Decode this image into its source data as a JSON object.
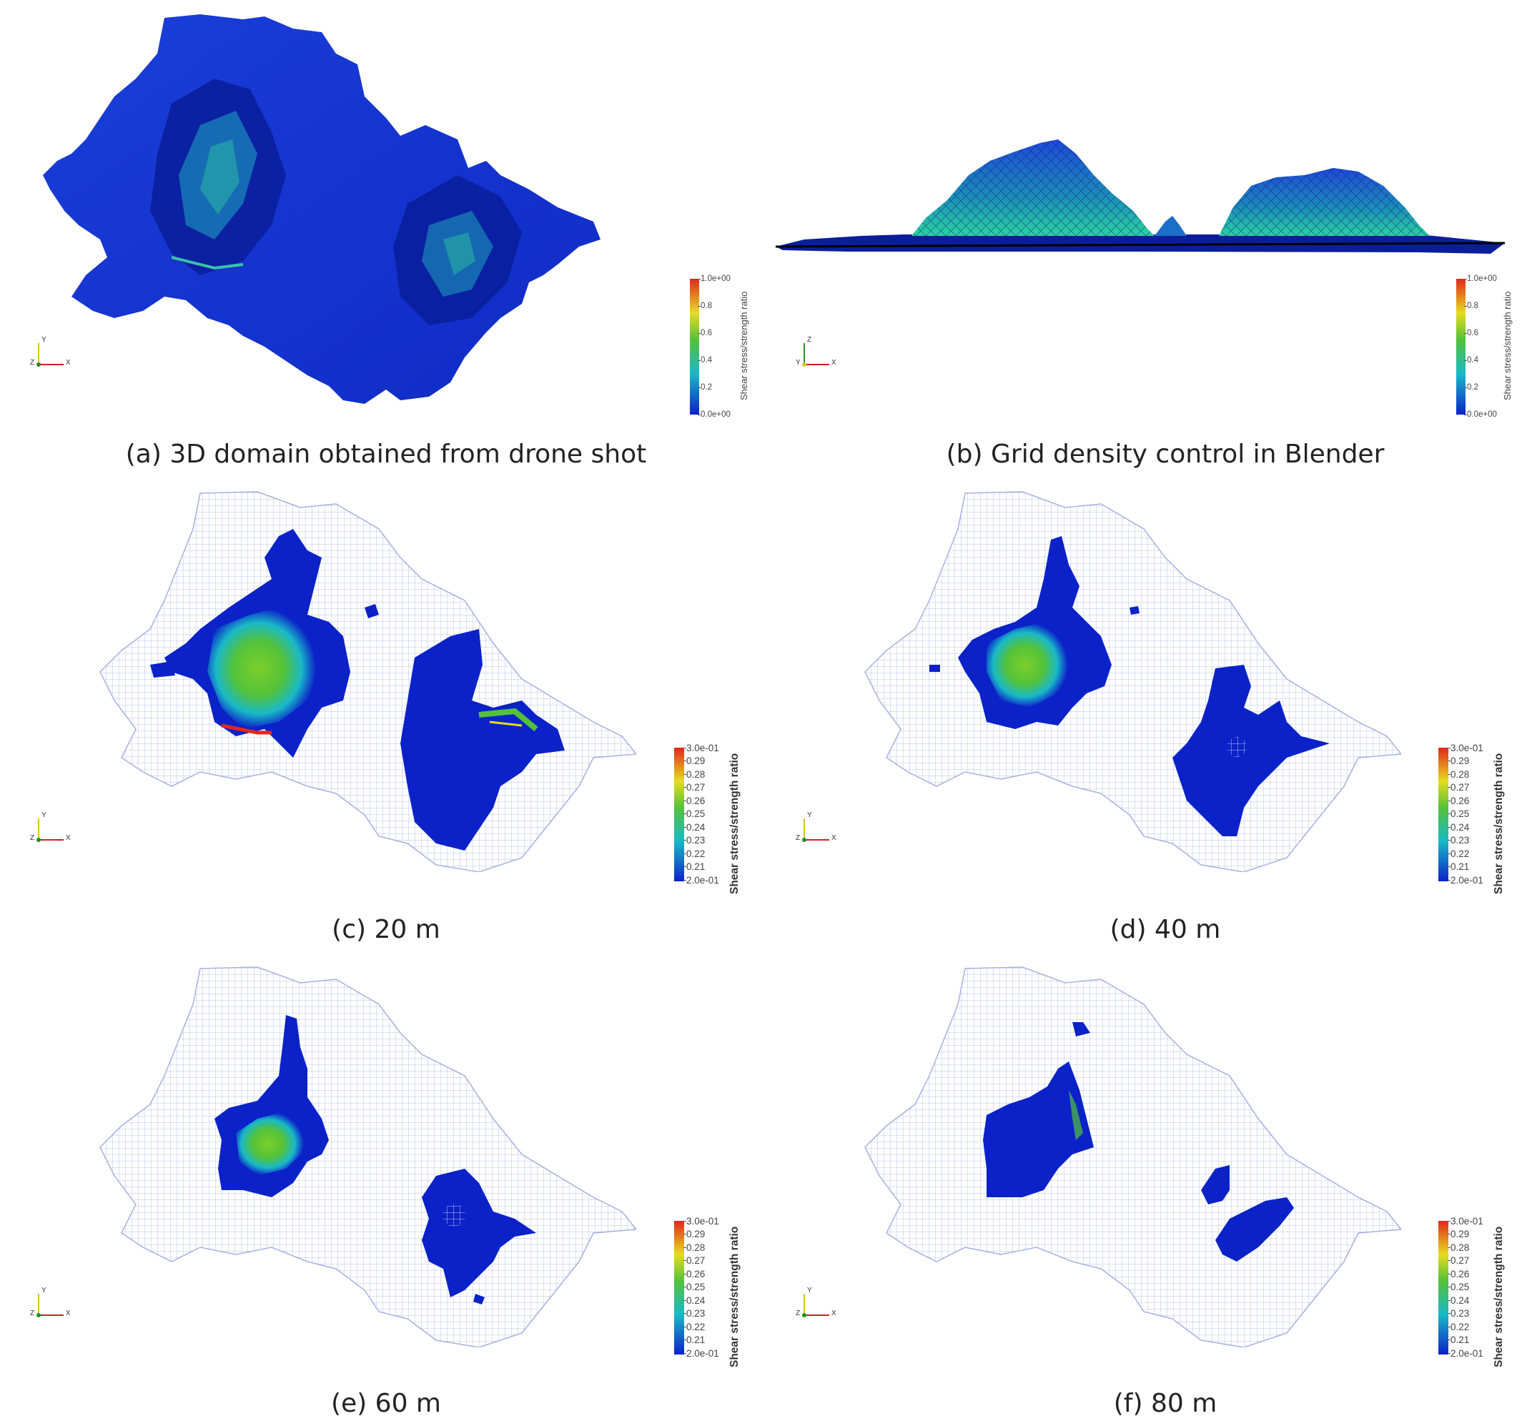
{
  "panels": [
    {
      "id": "a",
      "caption": "(a) 3D domain obtained from drone shot",
      "legend": {
        "title": "Shear stress/strength ratio",
        "ticks": [
          "1.0e+00",
          "0.8",
          "0.6",
          "0.4",
          "0.2",
          "0.0e+00"
        ]
      },
      "axes": {
        "up": "Y",
        "right": "X",
        "out": "Z"
      }
    },
    {
      "id": "b",
      "caption": "(b) Grid density control in Blender",
      "legend": {
        "title": "Shear stress/strength ratio",
        "ticks": [
          "1.0e+00",
          "0.8",
          "0.6",
          "0.4",
          "0.2",
          "0.0e+00"
        ]
      },
      "axes": {
        "up": "Z",
        "right": "X",
        "out": "Y"
      }
    },
    {
      "id": "c",
      "caption": "(c) 20 m",
      "legend": {
        "title": "Shear stress/strength ratio",
        "ticks": [
          "3.0e-01",
          "0.29",
          "0.28",
          "0.27",
          "0.26",
          "0.25",
          "0.24",
          "0.23",
          "0.22",
          "0.21",
          "2.0e-01"
        ]
      },
      "axes": {
        "up": "Y",
        "right": "X",
        "out": "Z"
      }
    },
    {
      "id": "d",
      "caption": "(d) 40 m",
      "legend": {
        "title": "Shear stress/strength ratio",
        "ticks": [
          "3.0e-01",
          "0.29",
          "0.28",
          "0.27",
          "0.26",
          "0.25",
          "0.24",
          "0.23",
          "0.22",
          "0.21",
          "2.0e-01"
        ]
      },
      "axes": {
        "up": "Y",
        "right": "X",
        "out": "Z"
      }
    },
    {
      "id": "e",
      "caption": "(e) 60 m",
      "legend": {
        "title": "Shear stress/strength ratio",
        "ticks": [
          "3.0e-01",
          "0.29",
          "0.28",
          "0.27",
          "0.26",
          "0.25",
          "0.24",
          "0.23",
          "0.22",
          "0.21",
          "2.0e-01"
        ]
      },
      "axes": {
        "up": "Y",
        "right": "X",
        "out": "Z"
      }
    },
    {
      "id": "f",
      "caption": "(f) 80 m",
      "legend": {
        "title": "Shear stress/strength ratio",
        "ticks": [
          "3.0e-01",
          "0.29",
          "0.28",
          "0.27",
          "0.26",
          "0.25",
          "0.24",
          "0.23",
          "0.22",
          "0.21",
          "2.0e-01"
        ]
      },
      "axes": {
        "up": "Y",
        "right": "X",
        "out": "Z"
      }
    }
  ],
  "colors": {
    "mesh_blue": "#1438d8",
    "deep_blue": "#0b22c8",
    "cyan": "#19b9c8",
    "green": "#53c23a",
    "yellow": "#e6dc1e",
    "red": "#e0281c",
    "grid_line": "#b9c0e6"
  }
}
